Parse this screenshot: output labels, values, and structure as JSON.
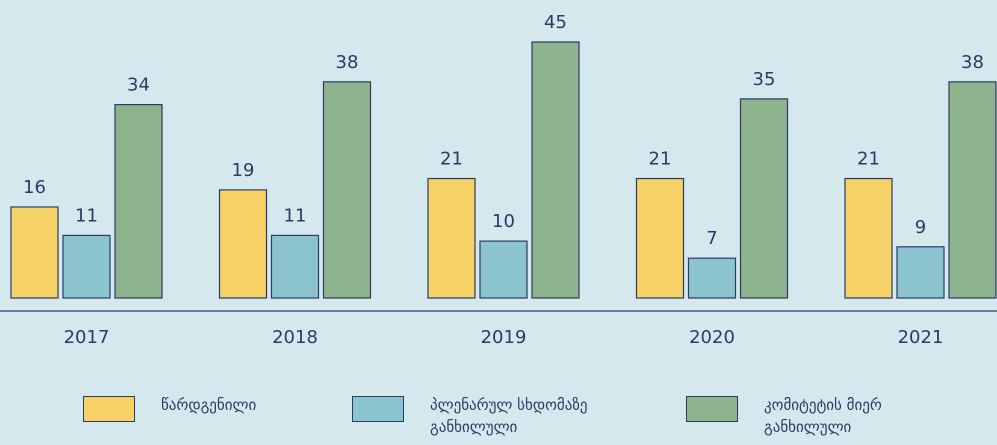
{
  "chart_data": {
    "type": "bar",
    "categories": [
      "2017",
      "2018",
      "2019",
      "2020",
      "2021"
    ],
    "series": [
      {
        "name": "წარდგენილი",
        "color": "#f6d165",
        "values": [
          16,
          19,
          21,
          21,
          21
        ]
      },
      {
        "name": "პლენარულ სხდომაზე განხილული",
        "color": "#8bc3cf",
        "values": [
          11,
          11,
          10,
          7,
          9
        ]
      },
      {
        "name": "კომიტეტის მიერ განხილული",
        "color": "#8db48c",
        "values": [
          34,
          38,
          45,
          35,
          38
        ]
      }
    ]
  }
}
